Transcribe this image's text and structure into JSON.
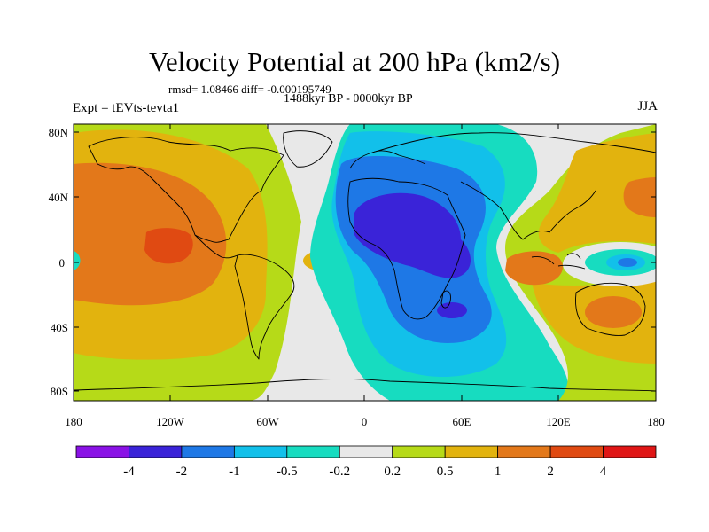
{
  "title": "Velocity Potential at 200 hPa (km2/s)",
  "stats": "rmsd= 1.08466 diff= -0.000195749",
  "period": "1488kyr BP - 0000kyr BP",
  "expt": "Expt = tEVts-tevta1",
  "season": "JJA",
  "lat_ticks": [
    "80N",
    "40N",
    "0",
    "40S",
    "80S"
  ],
  "lon_ticks": [
    "180",
    "120W",
    "60W",
    "0",
    "60E",
    "120E",
    "180"
  ],
  "colorbar": {
    "labels": [
      "-4",
      "-2",
      "-1",
      "-0.5",
      "-0.2",
      "0.2",
      "0.5",
      "1",
      "2",
      "4"
    ],
    "colors": [
      "#8a12e6",
      "#3a23d8",
      "#1e78e6",
      "#12c0ea",
      "#17dcc0",
      "#e8e8e8",
      "#b6da18",
      "#e2b30e",
      "#e3781a",
      "#e04a12",
      "#e01616"
    ]
  },
  "colors": {
    "grey": "#e8e8e8",
    "yellowgreen": "#b6da18",
    "gold": "#e2b30e",
    "orange": "#e3781a",
    "redorange": "#e04a12",
    "teal": "#17dcc0",
    "cyan": "#12c0ea",
    "blue": "#1e78e6",
    "deepblue": "#3a23d8"
  }
}
